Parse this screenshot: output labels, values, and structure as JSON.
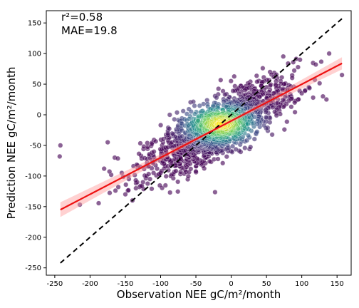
{
  "chart_data": {
    "type": "scatter",
    "xlabel": "Observation NEE gC/m²/month",
    "ylabel": "Prediction NEE gC/m²/month",
    "xlim": [
      -262,
      170
    ],
    "ylim": [
      -262,
      170
    ],
    "xticks": [
      -250,
      -200,
      -150,
      -100,
      -50,
      0,
      50,
      100,
      150
    ],
    "yticks": [
      -250,
      -200,
      -150,
      -100,
      -50,
      0,
      50,
      100,
      150
    ],
    "annotations": [
      "r²=0.58",
      "MAE=19.8"
    ],
    "grid": false,
    "point_colormap": "viridis (point density)",
    "point_count_estimate": 1600,
    "one_to_one_line": {
      "x": [
        -242,
        157
      ],
      "y": [
        -242,
        157
      ],
      "style": "black dashed"
    },
    "regression_line": {
      "x": [
        -242,
        157
      ],
      "y": [
        -155,
        84
      ],
      "style": "red with light confidence band"
    },
    "series": [
      {
        "x": [
          -243,
          -242,
          -180,
          -175,
          -170,
          -165,
          -160,
          -155,
          -150,
          -145,
          -140,
          -135,
          -130,
          -125,
          -120,
          -115,
          -110,
          -105,
          -100,
          -95,
          -90,
          -85,
          -80,
          -75,
          -70,
          -65,
          -60,
          -55,
          -50,
          -45,
          -40,
          -35,
          -30,
          -25,
          -20,
          -15,
          -10,
          -5,
          0,
          5,
          10,
          15,
          20,
          25,
          30,
          35,
          40,
          45,
          50,
          55,
          60,
          65,
          70,
          75,
          80,
          85,
          90,
          95,
          100,
          105,
          110,
          130,
          135,
          157
        ],
        "y": [
          -68,
          -50,
          -88,
          -45,
          -98,
          -70,
          -118,
          -95,
          -130,
          -105,
          -140,
          -120,
          -118,
          -110,
          -100,
          -105,
          -95,
          -88,
          -95,
          -80,
          -70,
          -75,
          -60,
          -65,
          -55,
          -50,
          -48,
          -40,
          -45,
          -35,
          -30,
          -25,
          -28,
          -20,
          -18,
          -15,
          -10,
          -5,
          -8,
          0,
          5,
          8,
          10,
          15,
          20,
          25,
          30,
          35,
          45,
          70,
          35,
          60,
          55,
          50,
          40,
          30,
          20,
          25,
          35,
          40,
          45,
          30,
          25,
          65
        ]
      }
    ]
  }
}
